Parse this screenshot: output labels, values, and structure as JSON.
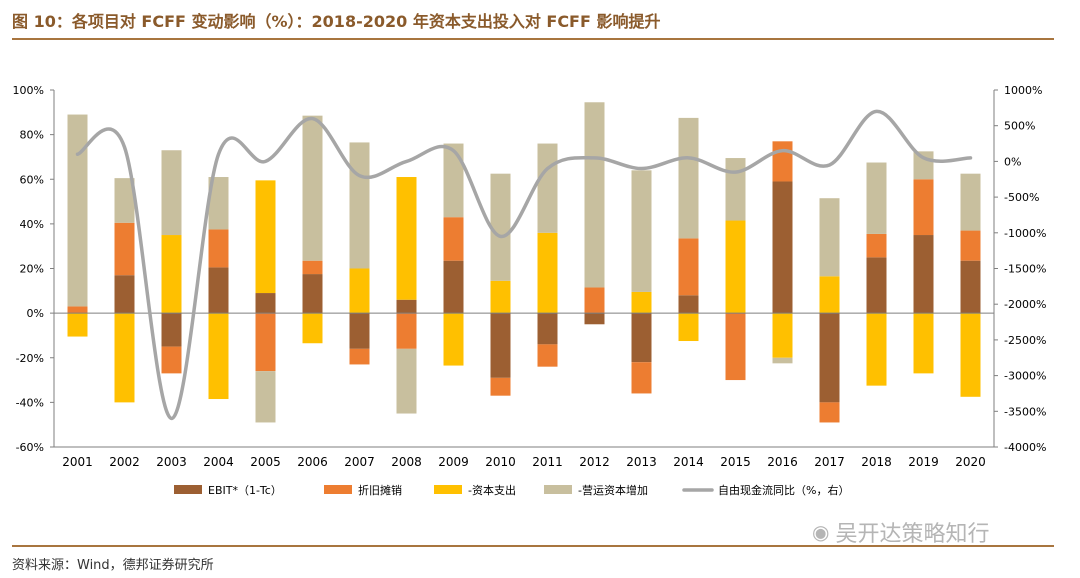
{
  "header": {
    "title": "图 10：各项目对 FCFF 变动影响（%）：2018-2020 年资本支出投入对 FCFF 影响提升"
  },
  "footer": {
    "source": "资料来源：Wind，德邦证券研究所",
    "watermark": "吴开达策略知行",
    "watermark_icon": "wechat-icon"
  },
  "colors": {
    "ebit": "#9C5F32",
    "depreciation": "#ED7D31",
    "capex": "#FFC000",
    "working_capital": "#C8BF9E",
    "fcf_yoy": "#A6A6A6",
    "rule": "#A8753F",
    "title": "#8A5A2B"
  },
  "chart_data": {
    "type": "bar",
    "stacked": true,
    "categories": [
      "2001",
      "2002",
      "2003",
      "2004",
      "2005",
      "2006",
      "2007",
      "2008",
      "2009",
      "2010",
      "2011",
      "2012",
      "2013",
      "2014",
      "2015",
      "2016",
      "2017",
      "2018",
      "2019",
      "2020"
    ],
    "series": [
      {
        "key": "ebit",
        "name": "EBIT*（1-Tc）",
        "values": [
          0,
          17,
          -15,
          20.5,
          9,
          17.5,
          -16,
          6,
          23.5,
          -29,
          -14,
          -5,
          -22,
          8,
          0,
          59,
          -40,
          25,
          35,
          23.5
        ]
      },
      {
        "key": "depreciation",
        "name": "折旧摊销",
        "values": [
          3,
          23.5,
          -12,
          17,
          -26,
          6,
          -7,
          -16,
          19.5,
          -8,
          -10,
          11.5,
          -14,
          25.5,
          -30,
          18,
          -9,
          10.5,
          25,
          13.5
        ]
      },
      {
        "key": "capex",
        "name": "-资本支出",
        "values": [
          -10.5,
          -40,
          35,
          -38.5,
          50.5,
          -13.5,
          20,
          55,
          -23.5,
          14.5,
          36,
          0,
          9.5,
          -12.5,
          41.5,
          -20,
          16.5,
          -32.5,
          -27,
          -37.5
        ]
      },
      {
        "key": "working_capital",
        "name": "-营运资本增加",
        "values": [
          86,
          20,
          38,
          23.5,
          -23,
          65,
          56.5,
          -29,
          33,
          48,
          40,
          83,
          54.5,
          54,
          28,
          -2.5,
          35,
          32,
          12.5,
          25.5
        ]
      }
    ],
    "line": {
      "key": "fcf_yoy",
      "name": "自由现金流同比（%，右）",
      "values": [
        100,
        200,
        -3600,
        100,
        0,
        600,
        -200,
        0,
        150,
        -1050,
        -100,
        50,
        -100,
        50,
        -150,
        150,
        -50,
        700,
        50,
        50
      ]
    },
    "ylim_left": [
      -60,
      100
    ],
    "yticks_left": [
      "-60%",
      "-40%",
      "-20%",
      "0%",
      "20%",
      "40%",
      "60%",
      "80%",
      "100%"
    ],
    "ylim_right": [
      -4000,
      1000
    ],
    "yticks_right": [
      "-4000%",
      "-3500%",
      "-3000%",
      "-2500%",
      "-2000%",
      "-1500%",
      "-1000%",
      "-500%",
      "0%",
      "500%",
      "1000%"
    ],
    "legend_position": "bottom",
    "legend": [
      "EBIT*（1-Tc）",
      "折旧摊销",
      "-资本支出",
      "-营运资本增加",
      "自由现金流同比（%，右）"
    ]
  }
}
